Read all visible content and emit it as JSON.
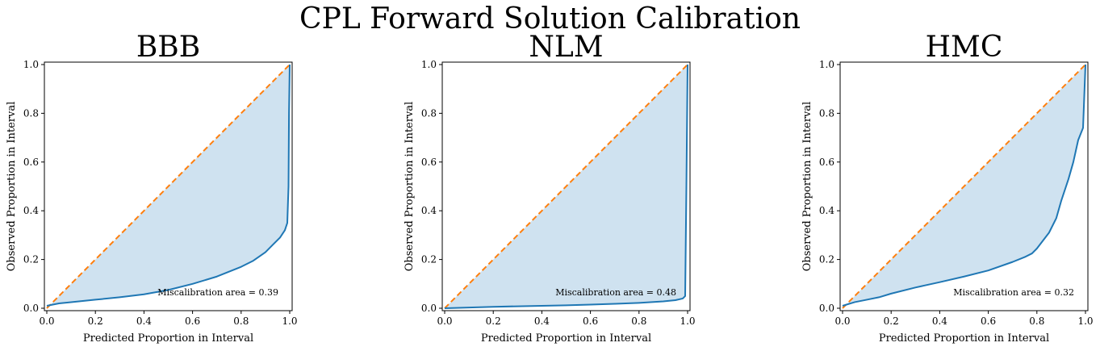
{
  "suptitle": "CPL Forward Solution Calibration",
  "colors": {
    "calibration_curve": "#1f77b4",
    "ideal_line": "#ff7f0e",
    "fill": "#cfe2f0"
  },
  "chart_data": [
    {
      "type": "line",
      "title": "BBB",
      "xlabel": "Predicted Proportion in Interval",
      "ylabel": "Observed Proportion in Interval",
      "xlim": [
        0,
        1
      ],
      "ylim": [
        0,
        1
      ],
      "xticks": [
        "0.0",
        "0.2",
        "0.4",
        "0.6",
        "0.8",
        "1.0"
      ],
      "yticks": [
        "0.0",
        "0.2",
        "0.4",
        "0.6",
        "0.8",
        "1.0"
      ],
      "annotation": "Miscalibration area = 0.39",
      "ideal": {
        "x": [
          0,
          1
        ],
        "y": [
          0,
          1
        ]
      },
      "x": [
        0,
        0.01,
        0.05,
        0.1,
        0.2,
        0.3,
        0.4,
        0.5,
        0.6,
        0.7,
        0.8,
        0.85,
        0.9,
        0.93,
        0.96,
        0.98,
        0.99,
        0.995,
        0.997,
        1.0
      ],
      "y": [
        0.01,
        0.012,
        0.02,
        0.025,
        0.035,
        0.045,
        0.057,
        0.075,
        0.1,
        0.13,
        0.17,
        0.195,
        0.23,
        0.26,
        0.29,
        0.32,
        0.35,
        0.5,
        0.8,
        1.0
      ]
    },
    {
      "type": "line",
      "title": "NLM",
      "xlabel": "Predicted Proportion in Interval",
      "ylabel": "Observed Proportion in Interval",
      "xlim": [
        0,
        1
      ],
      "ylim": [
        0,
        1
      ],
      "xticks": [
        "0.0",
        "0.2",
        "0.4",
        "0.6",
        "0.8",
        "1.0"
      ],
      "yticks": [
        "0.0",
        "0.2",
        "0.4",
        "0.6",
        "0.8",
        "1.0"
      ],
      "annotation": "Miscalibration area = 0.48",
      "ideal": {
        "x": [
          0,
          1
        ],
        "y": [
          0,
          1
        ]
      },
      "x": [
        0,
        0.1,
        0.2,
        0.3,
        0.4,
        0.5,
        0.6,
        0.7,
        0.8,
        0.9,
        0.95,
        0.98,
        0.99,
        0.995,
        1.0
      ],
      "y": [
        0.0,
        0.003,
        0.006,
        0.008,
        0.01,
        0.012,
        0.015,
        0.018,
        0.022,
        0.028,
        0.033,
        0.04,
        0.05,
        0.5,
        1.0
      ]
    },
    {
      "type": "line",
      "title": "HMC",
      "xlabel": "Predicted Proportion in Interval",
      "ylabel": "Observed Proportion in Interval",
      "xlim": [
        0,
        1
      ],
      "ylim": [
        0,
        1
      ],
      "xticks": [
        "0.0",
        "0.2",
        "0.4",
        "0.6",
        "0.8",
        "1.0"
      ],
      "yticks": [
        "0.0",
        "0.2",
        "0.4",
        "0.6",
        "0.8",
        "1.0"
      ],
      "annotation": "Miscalibration area = 0.32",
      "ideal": {
        "x": [
          0,
          1
        ],
        "y": [
          0,
          1
        ]
      },
      "x": [
        0,
        0.05,
        0.1,
        0.15,
        0.2,
        0.3,
        0.4,
        0.5,
        0.6,
        0.7,
        0.75,
        0.78,
        0.8,
        0.85,
        0.88,
        0.9,
        0.93,
        0.95,
        0.97,
        0.99,
        1.0
      ],
      "y": [
        0.01,
        0.025,
        0.035,
        0.045,
        0.06,
        0.085,
        0.107,
        0.13,
        0.155,
        0.19,
        0.21,
        0.225,
        0.245,
        0.31,
        0.37,
        0.44,
        0.53,
        0.6,
        0.69,
        0.74,
        1.0
      ]
    }
  ]
}
